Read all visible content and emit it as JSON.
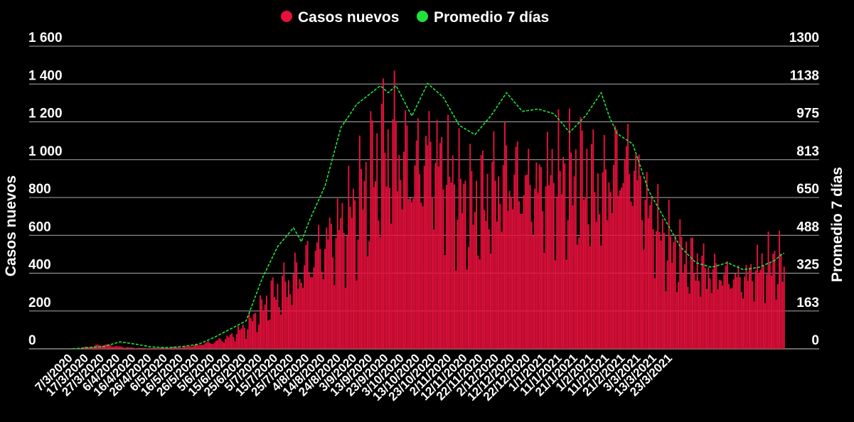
{
  "chart_data": {
    "type": "bar",
    "left_axis": {
      "label": "Casos nuevos",
      "ticks": [
        "0",
        "200",
        "400",
        "600",
        "800",
        "1 000",
        "1 200",
        "1 400",
        "1 600"
      ],
      "ylim": [
        0,
        1600
      ]
    },
    "right_axis": {
      "label": "Promedio 7 días",
      "ticks": [
        "0",
        "163",
        "325",
        "488",
        "650",
        "813",
        "975",
        "1138",
        "1300"
      ],
      "ylim": [
        0,
        1300
      ]
    },
    "legend": {
      "placement": "top-center",
      "items": [
        {
          "name": "Casos nuevos",
          "color": "#e8103c"
        },
        {
          "name": "Promedio 7 días",
          "color": "#22e13a"
        }
      ]
    },
    "x_tick_labels": [
      "7/3/2020",
      "17/3/2020",
      "27/3/2020",
      "6/4/2020",
      "16/4/2020",
      "26/4/2020",
      "6/5/2020",
      "16/5/2020",
      "26/5/2020",
      "5/6/2020",
      "15/6/2020",
      "25/6/2020",
      "5/7/2020",
      "15/7/2020",
      "25/7/2020",
      "4/8/2020",
      "14/8/2020",
      "24/8/2020",
      "3/9/2020",
      "13/9/2020",
      "23/9/2020",
      "3/10/2020",
      "13/10/2020",
      "23/10/2020",
      "2/11/2020",
      "12/11/2020",
      "22/11/2020",
      "2/12/2020",
      "12/12/2020",
      "22/12/2020",
      "1/1/2021",
      "11/1/2021",
      "21/1/2021",
      "1/2/2021",
      "11/2/2021",
      "21/2/2021",
      "3/3/2021",
      "13/3/2021",
      "23/3/2021"
    ],
    "series": [
      {
        "name": "Casos nuevos",
        "axis": "left",
        "type": "bar",
        "anchors": [
          [
            0,
            0
          ],
          [
            10,
            12
          ],
          [
            20,
            25
          ],
          [
            30,
            12
          ],
          [
            40,
            5
          ],
          [
            50,
            4
          ],
          [
            60,
            8
          ],
          [
            70,
            10
          ],
          [
            80,
            25
          ],
          [
            90,
            40
          ],
          [
            100,
            70
          ],
          [
            110,
            130
          ],
          [
            120,
            230
          ],
          [
            125,
            290
          ],
          [
            130,
            330
          ],
          [
            140,
            400
          ],
          [
            150,
            500
          ],
          [
            160,
            600
          ],
          [
            170,
            700
          ],
          [
            180,
            830
          ],
          [
            190,
            1020
          ],
          [
            197,
            1140
          ],
          [
            205,
            1180
          ],
          [
            215,
            1000
          ],
          [
            225,
            1130
          ],
          [
            235,
            1050
          ],
          [
            245,
            900
          ],
          [
            255,
            820
          ],
          [
            265,
            900
          ],
          [
            275,
            1010
          ],
          [
            285,
            950
          ],
          [
            295,
            920
          ],
          [
            305,
            1000
          ],
          [
            315,
            980
          ],
          [
            325,
            990
          ],
          [
            335,
            900
          ],
          [
            345,
            1060
          ],
          [
            355,
            1060
          ],
          [
            365,
            800
          ],
          [
            375,
            640
          ],
          [
            385,
            540
          ],
          [
            395,
            480
          ],
          [
            405,
            440
          ],
          [
            415,
            420
          ],
          [
            425,
            400
          ],
          [
            435,
            470
          ],
          [
            445,
            500
          ],
          [
            450,
            480
          ]
        ]
      },
      {
        "name": "Promedio 7 días",
        "axis": "right",
        "type": "line",
        "anchors": [
          [
            0,
            0
          ],
          [
            20,
            10
          ],
          [
            30,
            30
          ],
          [
            35,
            25
          ],
          [
            40,
            20
          ],
          [
            50,
            8
          ],
          [
            60,
            5
          ],
          [
            70,
            10
          ],
          [
            80,
            20
          ],
          [
            90,
            50
          ],
          [
            100,
            85
          ],
          [
            110,
            120
          ],
          [
            120,
            300
          ],
          [
            125,
            370
          ],
          [
            130,
            440
          ],
          [
            140,
            520
          ],
          [
            145,
            460
          ],
          [
            150,
            550
          ],
          [
            160,
            700
          ],
          [
            170,
            950
          ],
          [
            180,
            1050
          ],
          [
            195,
            1130
          ],
          [
            200,
            1100
          ],
          [
            205,
            1130
          ],
          [
            215,
            1000
          ],
          [
            225,
            1140
          ],
          [
            235,
            1080
          ],
          [
            245,
            960
          ],
          [
            255,
            920
          ],
          [
            265,
            1000
          ],
          [
            275,
            1100
          ],
          [
            285,
            1020
          ],
          [
            295,
            1030
          ],
          [
            305,
            1010
          ],
          [
            315,
            930
          ],
          [
            325,
            1000
          ],
          [
            335,
            1100
          ],
          [
            340,
            1000
          ],
          [
            345,
            925
          ],
          [
            355,
            880
          ],
          [
            365,
            680
          ],
          [
            375,
            560
          ],
          [
            385,
            440
          ],
          [
            395,
            370
          ],
          [
            405,
            350
          ],
          [
            415,
            370
          ],
          [
            425,
            340
          ],
          [
            435,
            350
          ],
          [
            445,
            380
          ],
          [
            450,
            410
          ]
        ]
      }
    ]
  }
}
